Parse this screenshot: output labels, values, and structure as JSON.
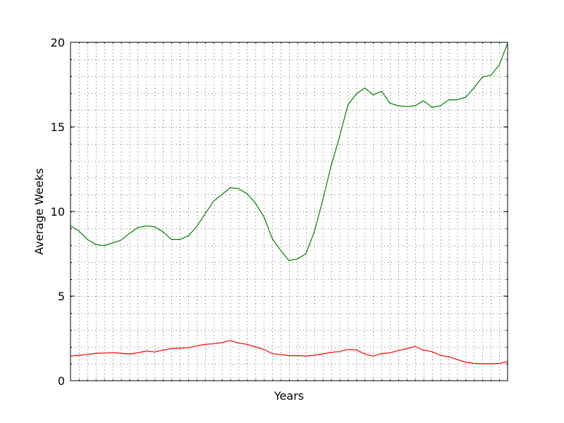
{
  "chart_data": {
    "type": "line",
    "title": "",
    "xlabel": "Years",
    "ylabel": "Average Weeks",
    "x_tick_labels_visible": false,
    "xlim": [
      0,
      52
    ],
    "ylim": [
      0,
      20
    ],
    "y_ticks": [
      0,
      5,
      10,
      15,
      20
    ],
    "y_tick_labels": [
      "0",
      "5",
      "10",
      "15",
      "20"
    ],
    "minor_x_step": 1,
    "minor_y_step": 1,
    "grid": true,
    "legend": "none",
    "series": [
      {
        "color": "#008000",
        "values": [
          9.15,
          8.85,
          8.35,
          8.05,
          7.98,
          8.15,
          8.3,
          8.7,
          9.05,
          9.15,
          9.1,
          8.8,
          8.35,
          8.35,
          8.55,
          9.1,
          9.85,
          10.6,
          11.0,
          11.4,
          11.35,
          11.05,
          10.5,
          9.7,
          8.4,
          7.7,
          7.1,
          7.2,
          7.5,
          8.8,
          10.65,
          12.7,
          14.4,
          16.3,
          16.95,
          17.3,
          16.9,
          17.1,
          16.4,
          16.25,
          16.2,
          16.25,
          16.55,
          16.15,
          16.25,
          16.6,
          16.6,
          16.75,
          17.3,
          17.95,
          18.05,
          18.65,
          19.95
        ]
      },
      {
        "color": "#ff0000",
        "values": [
          1.45,
          1.5,
          1.55,
          1.62,
          1.63,
          1.66,
          1.62,
          1.58,
          1.65,
          1.75,
          1.7,
          1.8,
          1.9,
          1.92,
          1.95,
          2.05,
          2.15,
          2.18,
          2.25,
          2.38,
          2.22,
          2.15,
          2.0,
          1.85,
          1.6,
          1.55,
          1.48,
          1.48,
          1.46,
          1.5,
          1.58,
          1.68,
          1.72,
          1.85,
          1.82,
          1.58,
          1.45,
          1.6,
          1.65,
          1.78,
          1.9,
          2.02,
          1.8,
          1.72,
          1.5,
          1.42,
          1.25,
          1.1,
          1.02,
          1.0,
          1.0,
          1.02,
          1.12
        ]
      }
    ]
  }
}
